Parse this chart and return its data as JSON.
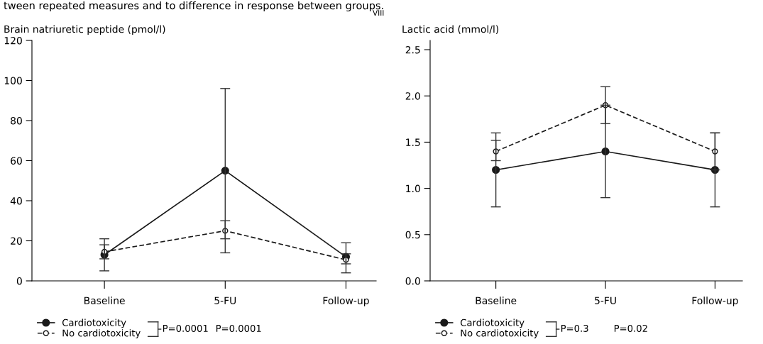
{
  "chart_data": [
    {
      "type": "line",
      "ylabel": "Brain natriuretic peptide (pmol/l)",
      "categories": [
        "Baseline",
        "5-FU",
        "Follow-up"
      ],
      "ylim": [
        0,
        120
      ],
      "yticks": [
        0,
        20,
        40,
        60,
        80,
        100,
        120
      ],
      "marker": "circle",
      "legend": "bottom left",
      "grid": false,
      "series": [
        {
          "name": "Cardiotoxicity",
          "color": "#1a1a1a",
          "line_style": "solid",
          "values": [
            13,
            55,
            12
          ],
          "errors": [
            [
              5,
              21
            ],
            [
              14,
              96
            ],
            [
              4,
              19
            ]
          ]
        },
        {
          "name": "No cardiotoxicity",
          "color": "#1a1a1a",
          "line_style": "dashed",
          "values": [
            14.5,
            25,
            10.5
          ],
          "errors": [
            [
              11,
              18
            ],
            [
              21,
              30
            ],
            [
              8.5,
              13.5
            ]
          ]
        }
      ],
      "annotations": [
        "tween repeated measures and to difference in response between groups.",
        "VIII",
        "P=0.0001",
        "P=0.0001"
      ]
    },
    {
      "type": "line",
      "ylabel": "Lactic acid (mmol/l)",
      "categories": [
        "Baseline",
        "5-FU",
        "Follow-up"
      ],
      "ylim": [
        0,
        2.6
      ],
      "yticks": [
        {
          "value": 0,
          "label": "0.0"
        },
        0.5,
        {
          "value": 1,
          "label": "1.0"
        },
        1.5,
        {
          "value": 2,
          "label": "2.0"
        },
        2.5
      ],
      "marker": "circle",
      "legend": "bottom left",
      "grid": false,
      "series": [
        {
          "name": "Cardiotoxicity",
          "color": "#1a1a1a",
          "line_style": "solid",
          "values": [
            1.2,
            1.4,
            1.2
          ],
          "errors": [
            [
              0.8,
              1.6
            ],
            [
              0.9,
              1.9
            ],
            [
              0.8,
              1.6
            ]
          ]
        },
        {
          "name": "No cardiotoxicity",
          "color": "#1a1a1a",
          "line_style": "dashed",
          "values": [
            1.4,
            1.9,
            1.4
          ],
          "errors": [
            [
              1.3,
              1.52
            ],
            [
              1.7,
              2.1
            ],
            [
              1.2,
              1.6
            ]
          ]
        }
      ],
      "annotations": [
        "P=0.3",
        "P=0.02"
      ]
    }
  ]
}
